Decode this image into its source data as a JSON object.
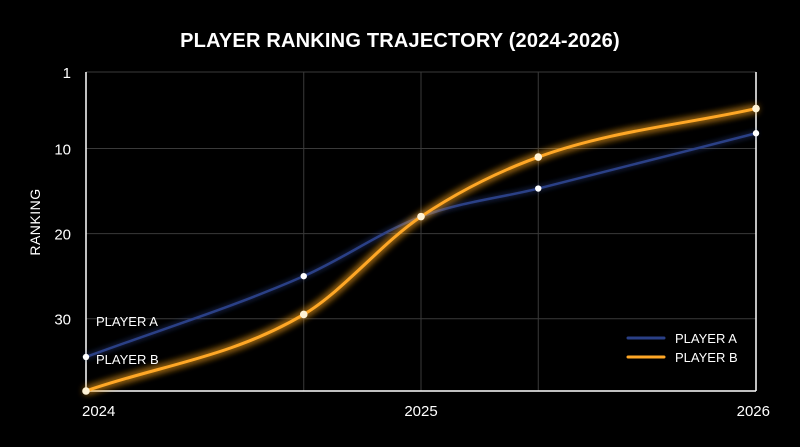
{
  "chart_data": {
    "type": "line",
    "title": "PLAYER RANKING TRAJECTORY (2024-2026)",
    "xlabel": "",
    "ylabel": "RANKING",
    "xlim": [
      2024,
      2026
    ],
    "ylim": [
      1,
      38.5
    ],
    "y_inverted": true,
    "grid": true,
    "x_ticks": [
      2024,
      2025,
      2026
    ],
    "x_tick_labels": [
      "2024",
      "2025",
      "2026"
    ],
    "y_ticks": [
      1,
      10,
      20,
      30
    ],
    "y_tick_labels": [
      "1",
      "10",
      "20",
      "30"
    ],
    "legend_position": "bottom-right",
    "series": [
      {
        "name": "PLAYER A",
        "color": "#2a3f86",
        "x": [
          2024,
          2024.65,
          2025,
          2025.35,
          2026
        ],
        "y": [
          34.5,
          25,
          18,
          14.7,
          8.2
        ]
      },
      {
        "name": "PLAYER B",
        "color": "#ffa726",
        "x": [
          2024,
          2024.65,
          2025,
          2025.35,
          2026
        ],
        "y": [
          38.5,
          29.5,
          18,
          11,
          5.3
        ]
      }
    ],
    "annotations": [
      "PLAYER A",
      "PLAYER B"
    ]
  }
}
